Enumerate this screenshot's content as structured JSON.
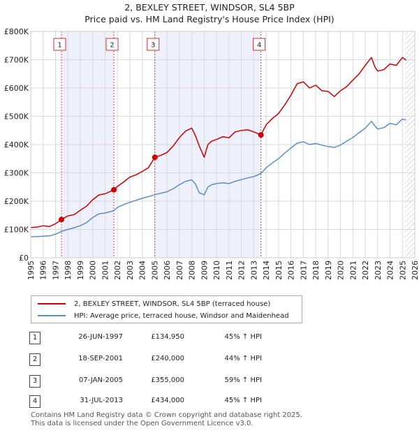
{
  "title_line1": "2, BEXLEY STREET, WINDSOR, SL4 5BP",
  "title_line2": "Price paid vs. HM Land Registry's House Price Index (HPI)",
  "colors": {
    "property": "#cc0000",
    "hpi": "#5b8ec9",
    "shade": "#eef0fb",
    "grid": "#d9d9d9"
  },
  "chart_data": {
    "type": "line",
    "xlim": [
      1995,
      2026
    ],
    "ylim": [
      0,
      800000
    ],
    "y_ticks": [
      0,
      100000,
      200000,
      300000,
      400000,
      500000,
      600000,
      700000,
      800000
    ],
    "y_tick_labels": [
      "£0",
      "£100K",
      "£200K",
      "£300K",
      "£400K",
      "£500K",
      "£600K",
      "£700K",
      "£800K"
    ],
    "x_ticks": [
      1995,
      1996,
      1997,
      1998,
      1999,
      2000,
      2001,
      2002,
      2003,
      2004,
      2005,
      2006,
      2007,
      2008,
      2009,
      2010,
      2011,
      2012,
      2013,
      2014,
      2015,
      2016,
      2017,
      2018,
      2019,
      2020,
      2021,
      2022,
      2023,
      2024,
      2025,
      2026
    ],
    "x_tick_labels": [
      "1995",
      "1996",
      "1997",
      "1998",
      "1999",
      "2000",
      "2001",
      "2002",
      "2003",
      "2004",
      "2005",
      "2006",
      "2007",
      "2008",
      "2009",
      "2010",
      "2011",
      "2012",
      "2013",
      "2014",
      "2015",
      "2016",
      "2017",
      "2018",
      "2019",
      "2020",
      "2021",
      "2022",
      "2023",
      "2024",
      "2025",
      "2026"
    ],
    "shaded_ranges": [
      [
        1997.48,
        2001.71
      ],
      [
        2005.02,
        2013.58
      ]
    ],
    "future_hatch_from": 2025.2,
    "series": [
      {
        "name": "2, BEXLEY STREET, WINDSOR, SL4 5BP (terraced house)",
        "x": [
          1995.0,
          1995.5,
          1996.0,
          1996.5,
          1997.0,
          1997.48,
          1998.0,
          1998.5,
          1999.0,
          1999.5,
          2000.0,
          2000.5,
          2001.0,
          2001.71,
          2002.0,
          2002.5,
          2003.0,
          2003.5,
          2004.0,
          2004.5,
          2005.02,
          2005.5,
          2006.0,
          2006.5,
          2007.0,
          2007.5,
          2008.0,
          2008.3,
          2008.6,
          2009.0,
          2009.3,
          2009.6,
          2010.0,
          2010.5,
          2011.0,
          2011.5,
          2012.0,
          2012.5,
          2013.0,
          2013.58,
          2014.0,
          2014.5,
          2015.0,
          2015.5,
          2016.0,
          2016.5,
          2017.0,
          2017.5,
          2018.0,
          2018.5,
          2019.0,
          2019.5,
          2020.0,
          2020.5,
          2021.0,
          2021.5,
          2022.0,
          2022.5,
          2022.8,
          2023.0,
          2023.5,
          2024.0,
          2024.5,
          2025.0,
          2025.3
        ],
        "values": [
          107000,
          108000,
          113000,
          110000,
          120000,
          134950,
          148000,
          152000,
          168000,
          182000,
          205000,
          222000,
          226000,
          240000,
          252000,
          268000,
          285000,
          293000,
          305000,
          318000,
          355000,
          362000,
          372000,
          395000,
          425000,
          448000,
          458000,
          430000,
          395000,
          355000,
          400000,
          412000,
          418000,
          428000,
          424000,
          445000,
          450000,
          452000,
          445000,
          434000,
          470000,
          492000,
          510000,
          540000,
          575000,
          615000,
          622000,
          600000,
          610000,
          590000,
          588000,
          570000,
          590000,
          605000,
          628000,
          650000,
          680000,
          708000,
          672000,
          660000,
          665000,
          685000,
          680000,
          708000,
          698000
        ]
      },
      {
        "name": "HPI: Average price, terraced house, Windsor and Maidenhead",
        "x": [
          1995.0,
          1995.5,
          1996.0,
          1996.5,
          1997.0,
          1997.48,
          1998.0,
          1998.5,
          1999.0,
          1999.5,
          2000.0,
          2000.5,
          2001.0,
          2001.71,
          2002.0,
          2002.5,
          2003.0,
          2003.5,
          2004.0,
          2004.5,
          2005.02,
          2005.5,
          2006.0,
          2006.5,
          2007.0,
          2007.5,
          2008.0,
          2008.3,
          2008.6,
          2009.0,
          2009.3,
          2009.6,
          2010.0,
          2010.5,
          2011.0,
          2011.5,
          2012.0,
          2012.5,
          2013.0,
          2013.58,
          2014.0,
          2014.5,
          2015.0,
          2015.5,
          2016.0,
          2016.5,
          2017.0,
          2017.5,
          2018.0,
          2018.5,
          2019.0,
          2019.5,
          2020.0,
          2020.5,
          2021.0,
          2021.5,
          2022.0,
          2022.5,
          2022.8,
          2023.0,
          2023.5,
          2024.0,
          2024.5,
          2025.0,
          2025.3
        ],
        "values": [
          74000,
          74500,
          76000,
          77000,
          83000,
          93000,
          100000,
          106000,
          113000,
          124000,
          142000,
          155000,
          158000,
          166500,
          178000,
          188000,
          196000,
          203000,
          210000,
          216000,
          223000,
          228000,
          233000,
          244000,
          258000,
          270000,
          275000,
          260000,
          230000,
          222000,
          250000,
          258000,
          262000,
          265000,
          262000,
          270000,
          276000,
          282000,
          287000,
          297500,
          318000,
          335000,
          350000,
          370000,
          388000,
          405000,
          410000,
          400000,
          404000,
          398000,
          393000,
          390000,
          398000,
          412000,
          425000,
          442000,
          458000,
          482000,
          465000,
          455000,
          460000,
          475000,
          470000,
          490000,
          487000
        ]
      }
    ],
    "sales": [
      {
        "n": "1",
        "x": 1997.48,
        "value": 134950
      },
      {
        "n": "2",
        "x": 2001.71,
        "value": 240000
      },
      {
        "n": "3",
        "x": 2005.02,
        "value": 355000
      },
      {
        "n": "4",
        "x": 2013.58,
        "value": 434000
      }
    ]
  },
  "legend": {
    "property": "2, BEXLEY STREET, WINDSOR, SL4 5BP (terraced house)",
    "hpi": "HPI: Average price, terraced house, Windsor and Maidenhead"
  },
  "sales_table": [
    {
      "n": "1",
      "date": "26-JUN-1997",
      "price": "£134,950",
      "hpi": "45% ↑ HPI"
    },
    {
      "n": "2",
      "date": "18-SEP-2001",
      "price": "£240,000",
      "hpi": "44% ↑ HPI"
    },
    {
      "n": "3",
      "date": "07-JAN-2005",
      "price": "£355,000",
      "hpi": "59% ↑ HPI"
    },
    {
      "n": "4",
      "date": "31-JUL-2013",
      "price": "£434,000",
      "hpi": "45% ↑ HPI"
    }
  ],
  "footer_line1": "Contains HM Land Registry data © Crown copyright and database right 2025.",
  "footer_line2": "This data is licensed under the Open Government Licence v3.0."
}
